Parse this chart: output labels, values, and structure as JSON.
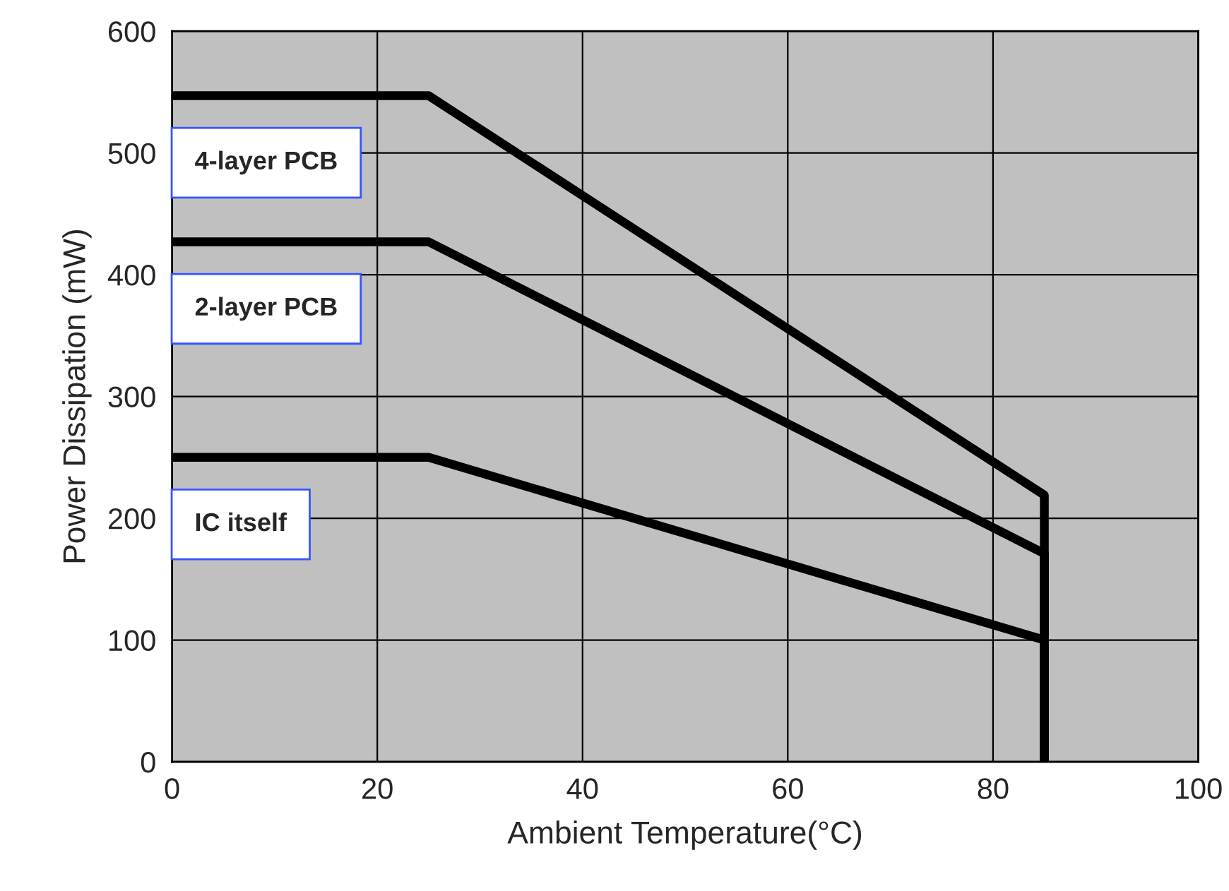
{
  "chart_data": {
    "type": "line",
    "xlabel": "Ambient Temperature(°C)",
    "ylabel": "Power Dissipation (mW)",
    "x": [
      0,
      25,
      85,
      85
    ],
    "series": [
      {
        "name": "4-layer PCB",
        "color": "#000000",
        "values": [
          547,
          547,
          219,
          0
        ]
      },
      {
        "name": "2-layer PCB",
        "color": "#000000",
        "values": [
          427,
          427,
          171,
          0
        ]
      },
      {
        "name": "IC itself",
        "color": "#000000",
        "values": [
          250,
          250,
          100,
          0
        ]
      }
    ],
    "xlim": [
      0,
      100
    ],
    "ylim": [
      0,
      600
    ],
    "xticks": [
      0,
      20,
      40,
      60,
      80,
      100
    ],
    "yticks": [
      0,
      100,
      200,
      300,
      400,
      500,
      600
    ],
    "grid": true,
    "line_style": "solid",
    "marker": "none",
    "legend": false
  }
}
